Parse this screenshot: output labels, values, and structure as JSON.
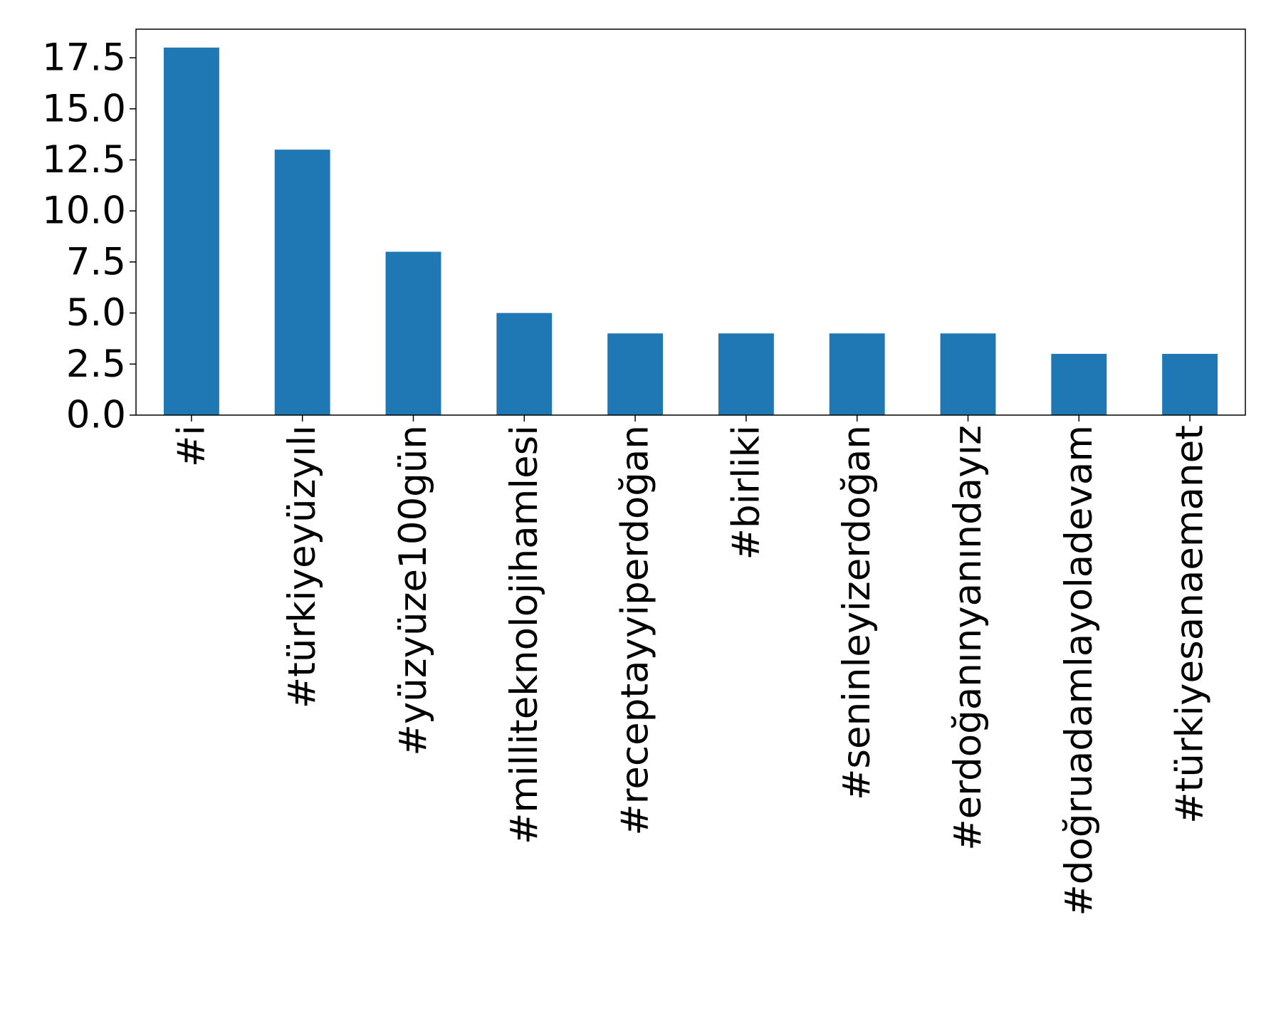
{
  "chart_data": {
    "type": "bar",
    "title": "",
    "xlabel": "",
    "ylabel": "",
    "categories": [
      "#i",
      "#türkiyeyüzyılı",
      "#yüzyüze100gün",
      "#milliteknolojihamlesi",
      "#receptayyiperdoğan",
      "#birliki",
      "#seninleyizerdoğan",
      "#erdoğanınyanındayız",
      "#doğruadamlayoladevam",
      "#türkiyesanaemanet"
    ],
    "values": [
      18,
      13,
      8,
      5,
      4,
      4,
      4,
      4,
      3,
      3
    ],
    "ylim": [
      0,
      18.9
    ],
    "yticks": [
      0.0,
      2.5,
      5.0,
      7.5,
      10.0,
      12.5,
      15.0,
      17.5
    ],
    "ytick_labels": [
      "0.0",
      "2.5",
      "5.0",
      "7.5",
      "10.0",
      "12.5",
      "15.0",
      "17.5"
    ],
    "bar_color": "#1f77b4",
    "grid": false,
    "legend": "none"
  }
}
